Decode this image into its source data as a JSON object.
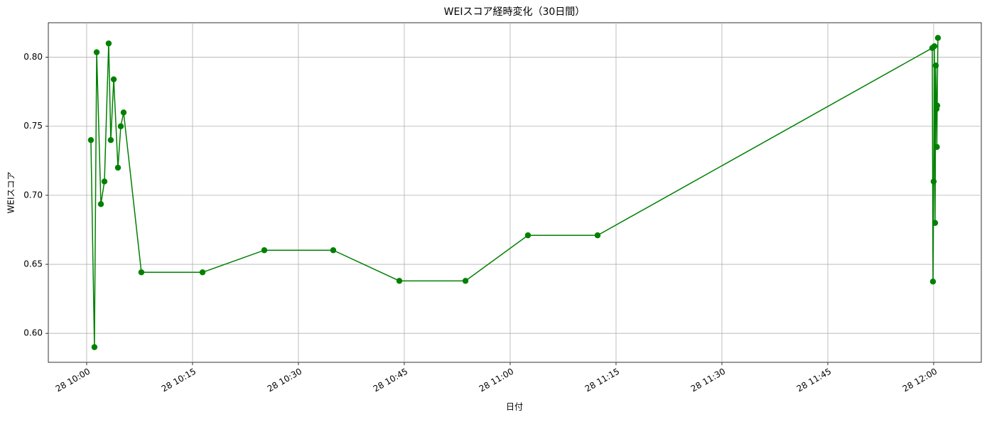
{
  "chart_data": {
    "type": "line",
    "title": "WEIスコア経時変化（30日間）",
    "x_label": "日付",
    "y_label": "WEIスコア",
    "grid": true,
    "x": [
      "28 10:00:36",
      "28 10:01:06",
      "28 10:01:25",
      "28 10:02:01",
      "28 10:02:31",
      "28 10:03:07",
      "28 10:03:25",
      "28 10:03:50",
      "28 10:04:26",
      "28 10:04:50",
      "28 10:05:14",
      "28 10:07:45",
      "28 10:16:25",
      "28 10:25:10",
      "28 10:34:56",
      "28 10:44:18",
      "28 10:53:40",
      "28 11:02:31",
      "28 11:12:23",
      "28 11:59:48",
      "28 11:59:54",
      "28 12:00:00",
      "28 12:00:06",
      "28 12:00:12",
      "28 12:00:18",
      "28 12:00:24",
      "28 12:00:27",
      "28 12:00:30",
      "28 12:00:36"
    ],
    "series": [
      {
        "name": "WEIスコア",
        "color": "#008000",
        "values": [
          0.74,
          0.59,
          0.8036,
          0.6936,
          0.71,
          0.81,
          0.74,
          0.784,
          0.72,
          0.75,
          0.76,
          0.6442,
          0.6442,
          0.6602,
          0.6602,
          0.638,
          0.638,
          0.671,
          0.671,
          0.8067,
          0.6375,
          0.71,
          0.808,
          0.68,
          0.794,
          0.7625,
          0.735,
          0.765,
          0.814
        ]
      }
    ],
    "xlim": [
      "28 09:54:34",
      "28 12:06:45"
    ],
    "xticks": [
      "28 10:00",
      "28 10:15",
      "28 10:30",
      "28 10:45",
      "28 11:00",
      "28 11:15",
      "28 11:30",
      "28 11:45",
      "28 12:00"
    ],
    "ylim": [
      0.579,
      0.825
    ],
    "yticks": [
      {
        "value": 0.6,
        "label": "0.60"
      },
      {
        "value": 0.65,
        "label": "0.65"
      },
      {
        "value": 0.7,
        "label": "0.70"
      },
      {
        "value": 0.75,
        "label": "0.75"
      },
      {
        "value": 0.8,
        "label": "0.80"
      }
    ]
  }
}
